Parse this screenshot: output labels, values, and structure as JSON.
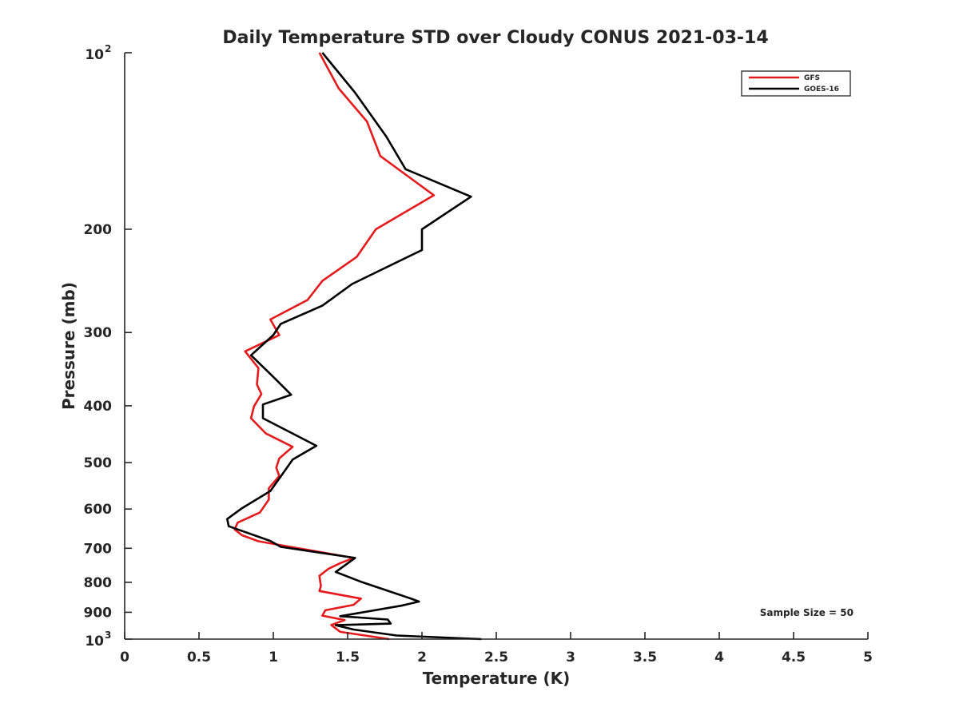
{
  "chart_data": {
    "type": "line",
    "title": "Daily Temperature STD over Cloudy CONUS 2021-03-14",
    "xlabel": "Temperature (K)",
    "ylabel": "Pressure (mb)",
    "xlim": [
      0,
      5
    ],
    "ylim": [
      100,
      1000
    ],
    "yscale": "log",
    "yreversed": true,
    "grid": false,
    "x_ticks": [
      {
        "value": 0,
        "label": "0"
      },
      {
        "value": 0.5,
        "label": "0.5"
      },
      {
        "value": 1,
        "label": "1"
      },
      {
        "value": 1.5,
        "label": "1.5"
      },
      {
        "value": 2,
        "label": "2"
      },
      {
        "value": 2.5,
        "label": "2.5"
      },
      {
        "value": 3,
        "label": "3"
      },
      {
        "value": 3.5,
        "label": "3.5"
      },
      {
        "value": 4,
        "label": "4"
      },
      {
        "value": 4.5,
        "label": "4.5"
      },
      {
        "value": 5,
        "label": "5"
      }
    ],
    "y_ticks": [
      {
        "value": 100,
        "base": "10",
        "exp": "2"
      },
      {
        "value": 200,
        "label": "200"
      },
      {
        "value": 300,
        "label": "300"
      },
      {
        "value": 400,
        "label": "400"
      },
      {
        "value": 500,
        "label": "500"
      },
      {
        "value": 600,
        "label": "600"
      },
      {
        "value": 700,
        "label": "700"
      },
      {
        "value": 800,
        "label": "800"
      },
      {
        "value": 900,
        "label": "900"
      },
      {
        "value": 1000,
        "base": "10",
        "exp": "3"
      }
    ],
    "legend": {
      "placement": "top-right",
      "entries": [
        "GFS",
        "GOES-16"
      ]
    },
    "annotation": "Sample Size = 50",
    "series": [
      {
        "name": "GFS",
        "color": "#e41a1c",
        "points": [
          [
            1.31,
            100
          ],
          [
            1.44,
            115
          ],
          [
            1.63,
            131
          ],
          [
            1.72,
            150
          ],
          [
            2.08,
            175
          ],
          [
            1.69,
            200
          ],
          [
            1.56,
            223
          ],
          [
            1.33,
            245
          ],
          [
            1.23,
            264
          ],
          [
            0.98,
            285
          ],
          [
            1.04,
            303
          ],
          [
            0.81,
            323
          ],
          [
            0.9,
            345
          ],
          [
            0.89,
            368
          ],
          [
            0.92,
            382
          ],
          [
            0.87,
            401
          ],
          [
            0.85,
            420
          ],
          [
            0.95,
            446
          ],
          [
            1.13,
            470
          ],
          [
            1.04,
            492
          ],
          [
            1.02,
            510
          ],
          [
            1.04,
            527
          ],
          [
            0.97,
            553
          ],
          [
            0.97,
            578
          ],
          [
            0.91,
            608
          ],
          [
            0.76,
            633
          ],
          [
            0.74,
            650
          ],
          [
            0.79,
            665
          ],
          [
            0.9,
            681
          ],
          [
            1.54,
            727
          ],
          [
            1.45,
            742
          ],
          [
            1.37,
            759
          ],
          [
            1.31,
            780
          ],
          [
            1.32,
            812
          ],
          [
            1.31,
            828
          ],
          [
            1.59,
            853
          ],
          [
            1.54,
            874
          ],
          [
            1.35,
            893
          ],
          [
            1.33,
            912
          ],
          [
            1.48,
            928
          ],
          [
            1.39,
            946
          ],
          [
            1.45,
            972
          ],
          [
            1.78,
            1000
          ]
        ]
      },
      {
        "name": "GOES-16",
        "color": "#000000",
        "points": [
          [
            1.33,
            100
          ],
          [
            1.55,
            117
          ],
          [
            1.76,
            139
          ],
          [
            1.89,
            158
          ],
          [
            2.33,
            176
          ],
          [
            2.0,
            200
          ],
          [
            2.0,
            217
          ],
          [
            1.53,
            248
          ],
          [
            1.33,
            270
          ],
          [
            1.05,
            290
          ],
          [
            1.0,
            303
          ],
          [
            0.85,
            328
          ],
          [
            0.99,
            355
          ],
          [
            1.12,
            383
          ],
          [
            0.93,
            398
          ],
          [
            0.93,
            420
          ],
          [
            1.29,
            468
          ],
          [
            1.13,
            494
          ],
          [
            1.08,
            515
          ],
          [
            0.98,
            559
          ],
          [
            0.79,
            598
          ],
          [
            0.69,
            624
          ],
          [
            0.7,
            642
          ],
          [
            0.98,
            680
          ],
          [
            1.05,
            696
          ],
          [
            1.55,
            727
          ],
          [
            1.42,
            768
          ],
          [
            1.6,
            800
          ],
          [
            1.92,
            852
          ],
          [
            1.98,
            863
          ],
          [
            1.86,
            877
          ],
          [
            1.45,
            914
          ],
          [
            1.77,
            926
          ],
          [
            1.79,
            941
          ],
          [
            1.42,
            947
          ],
          [
            1.54,
            963
          ],
          [
            1.83,
            986
          ],
          [
            2.4,
            1000
          ]
        ]
      }
    ]
  }
}
